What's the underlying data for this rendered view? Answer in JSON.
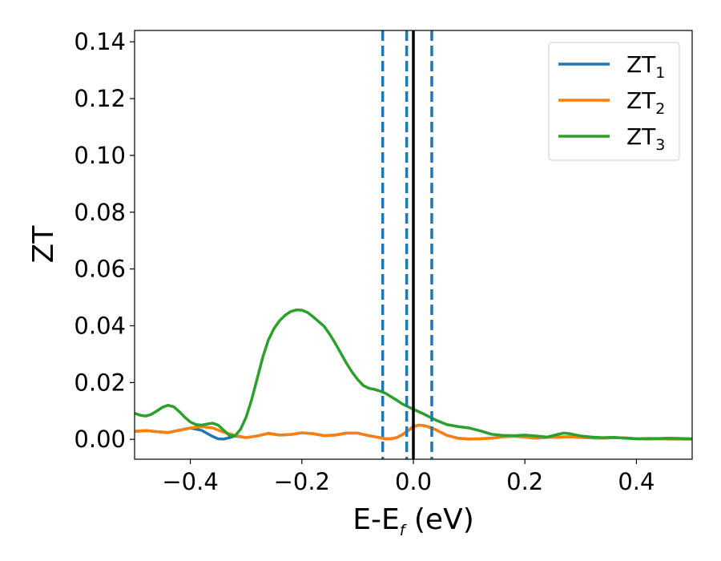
{
  "chart_data": {
    "type": "line",
    "xlabel": "E-E",
    "xlabel_sub": "f",
    "xlabel_unit": " (eV)",
    "ylabel": "ZT",
    "xlim": [
      -0.5,
      0.5
    ],
    "ylim": [
      -0.007,
      0.144
    ],
    "xticks": [
      -0.4,
      -0.2,
      0.0,
      0.2,
      0.4
    ],
    "xtick_labels": [
      "−0.4",
      "−0.2",
      "0.0",
      "0.2",
      "0.4"
    ],
    "yticks": [
      0.0,
      0.02,
      0.04,
      0.06,
      0.08,
      0.1,
      0.12,
      0.14
    ],
    "ytick_labels": [
      "0.00",
      "0.02",
      "0.04",
      "0.06",
      "0.08",
      "0.10",
      "0.12",
      "0.14"
    ],
    "grid": false,
    "legend": "top-right",
    "vertical_lines": [
      {
        "x": 0.0,
        "style": "solid",
        "color": "#000000"
      },
      {
        "x": -0.055,
        "style": "dashed",
        "color": "#1f77b4"
      },
      {
        "x": -0.012,
        "style": "dashed",
        "color": "#1f77b4"
      },
      {
        "x": 0.033,
        "style": "dashed",
        "color": "#1f77b4"
      }
    ],
    "series": [
      {
        "name": "ZT",
        "sub": "1",
        "color": "#1f77b4",
        "x": [
          -0.5,
          -0.48,
          -0.46,
          -0.44,
          -0.42,
          -0.4,
          -0.38,
          -0.36,
          -0.35,
          -0.34,
          -0.33,
          -0.32,
          -0.3,
          -0.28,
          -0.26,
          -0.24,
          -0.22,
          -0.2,
          -0.18,
          -0.16,
          -0.14,
          -0.12,
          -0.1,
          -0.08,
          -0.06,
          -0.05,
          -0.04,
          -0.03,
          -0.02,
          -0.01,
          0.0,
          0.01,
          0.02,
          0.03,
          0.04,
          0.06,
          0.08,
          0.1,
          0.12,
          0.14,
          0.16,
          0.18,
          0.2,
          0.22,
          0.24,
          0.26,
          0.28,
          0.3,
          0.32,
          0.34,
          0.36,
          0.38,
          0.4,
          0.42,
          0.44,
          0.46,
          0.48,
          0.5
        ],
        "y": [
          0.0028,
          0.0031,
          0.0027,
          0.0024,
          0.0032,
          0.004,
          0.0032,
          0.001,
          0.0002,
          0.0001,
          0.0006,
          0.0012,
          0.0006,
          0.0012,
          0.0021,
          0.0015,
          0.0017,
          0.0023,
          0.002,
          0.0013,
          0.0015,
          0.0022,
          0.0022,
          0.0013,
          0.0006,
          0.0002,
          0.0002,
          0.0006,
          0.0016,
          0.003,
          0.0045,
          0.005,
          0.0048,
          0.0042,
          0.0034,
          0.0014,
          0.0004,
          0.0001,
          0.0002,
          0.0004,
          0.0009,
          0.0011,
          0.0008,
          0.0004,
          0.0007,
          0.0008,
          0.0009,
          0.0007,
          0.0005,
          0.0004,
          0.0006,
          0.0005,
          0.0002,
          0.0001,
          0.0002,
          0.0001,
          0.0001,
          0.0001
        ]
      },
      {
        "name": "ZT",
        "sub": "2",
        "color": "#ff7f0e",
        "x": [
          -0.5,
          -0.48,
          -0.46,
          -0.44,
          -0.42,
          -0.4,
          -0.38,
          -0.36,
          -0.34,
          -0.32,
          -0.3,
          -0.28,
          -0.26,
          -0.24,
          -0.22,
          -0.2,
          -0.18,
          -0.16,
          -0.14,
          -0.12,
          -0.1,
          -0.08,
          -0.06,
          -0.05,
          -0.04,
          -0.03,
          -0.02,
          -0.01,
          0.0,
          0.01,
          0.02,
          0.03,
          0.04,
          0.06,
          0.08,
          0.1,
          0.12,
          0.14,
          0.16,
          0.18,
          0.2,
          0.22,
          0.24,
          0.26,
          0.28,
          0.3,
          0.32,
          0.34,
          0.36,
          0.38,
          0.4,
          0.42,
          0.44,
          0.46,
          0.48,
          0.5
        ],
        "y": [
          0.0028,
          0.0031,
          0.0027,
          0.0024,
          0.0032,
          0.004,
          0.0045,
          0.004,
          0.0025,
          0.0014,
          0.0006,
          0.0012,
          0.0021,
          0.0015,
          0.0017,
          0.0023,
          0.002,
          0.0013,
          0.0015,
          0.0022,
          0.0022,
          0.0013,
          0.0006,
          0.0002,
          0.0002,
          0.0006,
          0.0016,
          0.003,
          0.0045,
          0.005,
          0.0048,
          0.0042,
          0.0034,
          0.0014,
          0.0004,
          0.0001,
          0.0002,
          0.0004,
          0.0009,
          0.0011,
          0.0008,
          0.0004,
          0.0007,
          0.0008,
          0.0009,
          0.0007,
          0.0005,
          0.0004,
          0.0006,
          0.0005,
          0.0002,
          0.0001,
          0.0002,
          0.0001,
          0.0001,
          0.0001
        ]
      },
      {
        "name": "ZT",
        "sub": "3",
        "color": "#2ca02c",
        "x": [
          -0.5,
          -0.49,
          -0.48,
          -0.47,
          -0.46,
          -0.45,
          -0.44,
          -0.43,
          -0.42,
          -0.41,
          -0.4,
          -0.39,
          -0.38,
          -0.37,
          -0.36,
          -0.35,
          -0.34,
          -0.33,
          -0.32,
          -0.31,
          -0.3,
          -0.29,
          -0.28,
          -0.27,
          -0.26,
          -0.25,
          -0.24,
          -0.23,
          -0.22,
          -0.21,
          -0.2,
          -0.19,
          -0.18,
          -0.17,
          -0.16,
          -0.15,
          -0.14,
          -0.13,
          -0.12,
          -0.11,
          -0.1,
          -0.09,
          -0.08,
          -0.07,
          -0.06,
          -0.05,
          -0.04,
          -0.03,
          -0.02,
          -0.01,
          0.0,
          0.02,
          0.04,
          0.06,
          0.08,
          0.1,
          0.12,
          0.14,
          0.16,
          0.18,
          0.2,
          0.22,
          0.24,
          0.26,
          0.27,
          0.28,
          0.3,
          0.32,
          0.34,
          0.36,
          0.38,
          0.4,
          0.42,
          0.44,
          0.46,
          0.48,
          0.5
        ],
        "y": [
          0.0092,
          0.0085,
          0.0082,
          0.0088,
          0.01,
          0.0113,
          0.012,
          0.0115,
          0.0098,
          0.0078,
          0.0061,
          0.0052,
          0.005,
          0.0054,
          0.0057,
          0.005,
          0.0032,
          0.0014,
          0.0012,
          0.0035,
          0.0078,
          0.014,
          0.0215,
          0.029,
          0.035,
          0.039,
          0.0418,
          0.0437,
          0.045,
          0.0456,
          0.0455,
          0.0447,
          0.0432,
          0.0415,
          0.0398,
          0.037,
          0.0338,
          0.0303,
          0.0268,
          0.0237,
          0.0211,
          0.019,
          0.018,
          0.0176,
          0.017,
          0.0162,
          0.015,
          0.0138,
          0.0125,
          0.0115,
          0.0106,
          0.0088,
          0.0068,
          0.0052,
          0.0045,
          0.004,
          0.003,
          0.0018,
          0.0014,
          0.0013,
          0.0015,
          0.0012,
          0.0008,
          0.0018,
          0.0022,
          0.002,
          0.0012,
          0.0008,
          0.0006,
          0.0007,
          0.0004,
          0.0002,
          0.0003,
          0.0003,
          0.0004,
          0.0003,
          0.0002
        ]
      }
    ]
  }
}
